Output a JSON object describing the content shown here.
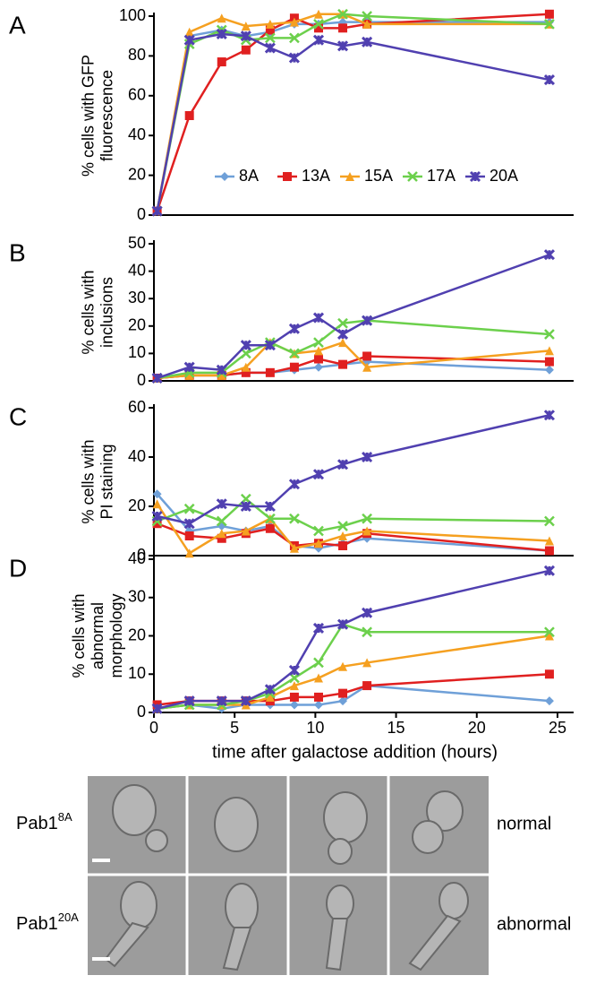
{
  "chart_data": [
    {
      "type": "line",
      "panel": "A",
      "ylabel": [
        "% cells with GFP",
        "fluorescence"
      ],
      "x": [
        0.2,
        2.2,
        4.2,
        5.7,
        7.2,
        8.7,
        10.2,
        11.7,
        13.2,
        24.5
      ],
      "xlim": [
        0,
        26
      ],
      "ylim": [
        0,
        100
      ],
      "yticks": [
        0,
        20,
        40,
        60,
        80,
        100
      ],
      "legend": "bottom-right",
      "series": [
        {
          "name": "8A",
          "color": "#6fa0d8",
          "marker": "diamond",
          "values": [
            2,
            90,
            93,
            90,
            92,
            96,
            96,
            97,
            97,
            97
          ]
        },
        {
          "name": "13A",
          "color": "#e02020",
          "marker": "square",
          "values": [
            2,
            50,
            77,
            83,
            93,
            99,
            94,
            94,
            96,
            101
          ]
        },
        {
          "name": "15A",
          "color": "#f5a020",
          "marker": "triangle",
          "values": [
            2,
            92,
            99,
            95,
            96,
            97,
            101,
            101,
            96,
            96
          ]
        },
        {
          "name": "17A",
          "color": "#6cd04c",
          "marker": "cross",
          "values": [
            2,
            86,
            93,
            88,
            89,
            89,
            96,
            101,
            100,
            96
          ]
        },
        {
          "name": "20A",
          "color": "#5040b0",
          "marker": "star",
          "values": [
            2,
            88,
            91,
            90,
            84,
            79,
            88,
            85,
            87,
            68
          ]
        }
      ]
    },
    {
      "type": "line",
      "panel": "B",
      "ylabel": [
        "% cells with",
        "inclusions"
      ],
      "x": [
        0.2,
        2.2,
        4.2,
        5.7,
        7.2,
        8.7,
        10.2,
        11.7,
        13.2,
        24.5
      ],
      "xlim": [
        0,
        26
      ],
      "ylim": [
        0,
        50
      ],
      "yticks": [
        0,
        10,
        20,
        30,
        40,
        50
      ],
      "series": [
        {
          "color": "#6fa0d8",
          "marker": "diamond",
          "values": [
            1,
            2,
            2,
            3,
            3,
            4,
            5,
            6,
            7,
            4
          ]
        },
        {
          "color": "#e02020",
          "marker": "square",
          "values": [
            1,
            2,
            2,
            3,
            3,
            5,
            8,
            6,
            9,
            7
          ]
        },
        {
          "color": "#f5a020",
          "marker": "triangle",
          "values": [
            1,
            2,
            2,
            5,
            14,
            10,
            11,
            14,
            5,
            11
          ]
        },
        {
          "color": "#6cd04c",
          "marker": "cross",
          "values": [
            1,
            3,
            3,
            10,
            14,
            10,
            14,
            21,
            22,
            17
          ]
        },
        {
          "color": "#5040b0",
          "marker": "star",
          "values": [
            1,
            5,
            4,
            13,
            13,
            19,
            23,
            17,
            22,
            46
          ]
        }
      ]
    },
    {
      "type": "line",
      "panel": "C",
      "ylabel": [
        "% cells with",
        "PI staining"
      ],
      "x": [
        0.2,
        2.2,
        4.2,
        5.7,
        7.2,
        8.7,
        10.2,
        11.7,
        13.2,
        24.5
      ],
      "xlim": [
        0,
        26
      ],
      "ylim": [
        0,
        60
      ],
      "yticks": [
        0,
        20,
        40,
        60
      ],
      "series": [
        {
          "color": "#6fa0d8",
          "marker": "diamond",
          "values": [
            25,
            10,
            12,
            10,
            12,
            4,
            3,
            5,
            7,
            2
          ]
        },
        {
          "color": "#e02020",
          "marker": "square",
          "values": [
            13,
            8,
            7,
            9,
            11,
            4,
            5,
            4,
            9,
            2
          ]
        },
        {
          "color": "#f5a020",
          "marker": "triangle",
          "values": [
            21,
            1,
            9,
            10,
            15,
            3,
            5,
            8,
            10,
            6
          ]
        },
        {
          "color": "#6cd04c",
          "marker": "cross",
          "values": [
            14,
            19,
            14,
            23,
            15,
            15,
            10,
            12,
            15,
            14
          ]
        },
        {
          "color": "#5040b0",
          "marker": "star",
          "values": [
            16,
            13,
            21,
            20,
            20,
            29,
            33,
            37,
            40,
            57
          ]
        }
      ]
    },
    {
      "type": "line",
      "panel": "D",
      "ylabel": [
        "% cells with",
        "abnormal",
        "morphology"
      ],
      "xlabel": "time after galactose addition (hours)",
      "x": [
        0.2,
        2.2,
        4.2,
        5.7,
        7.2,
        8.7,
        10.2,
        11.7,
        13.2,
        24.5
      ],
      "xlim": [
        0,
        26
      ],
      "xticks": [
        0,
        5,
        10,
        15,
        20,
        25
      ],
      "ylim": [
        0,
        40
      ],
      "yticks": [
        0,
        10,
        20,
        30,
        40
      ],
      "series": [
        {
          "color": "#6fa0d8",
          "marker": "diamond",
          "values": [
            1,
            2,
            1,
            2,
            2,
            2,
            2,
            3,
            7,
            3
          ]
        },
        {
          "color": "#e02020",
          "marker": "square",
          "values": [
            2,
            3,
            3,
            3,
            3,
            4,
            4,
            5,
            7,
            10
          ]
        },
        {
          "color": "#f5a020",
          "marker": "triangle",
          "values": [
            1,
            2,
            2,
            2,
            4,
            7,
            9,
            12,
            13,
            20
          ]
        },
        {
          "color": "#6cd04c",
          "marker": "cross",
          "values": [
            1,
            2,
            2,
            3,
            5,
            9,
            13,
            23,
            21,
            21
          ]
        },
        {
          "color": "#5040b0",
          "marker": "star",
          "values": [
            1,
            3,
            3,
            3,
            6,
            11,
            22,
            23,
            26,
            37
          ]
        }
      ]
    }
  ],
  "images": {
    "rows": [
      {
        "label": {
          "base": "Pab1",
          "sup": "8A"
        },
        "class": "normal"
      },
      {
        "label": {
          "base": "Pab1",
          "sup": "20A"
        },
        "class": "abnormal"
      }
    ]
  }
}
